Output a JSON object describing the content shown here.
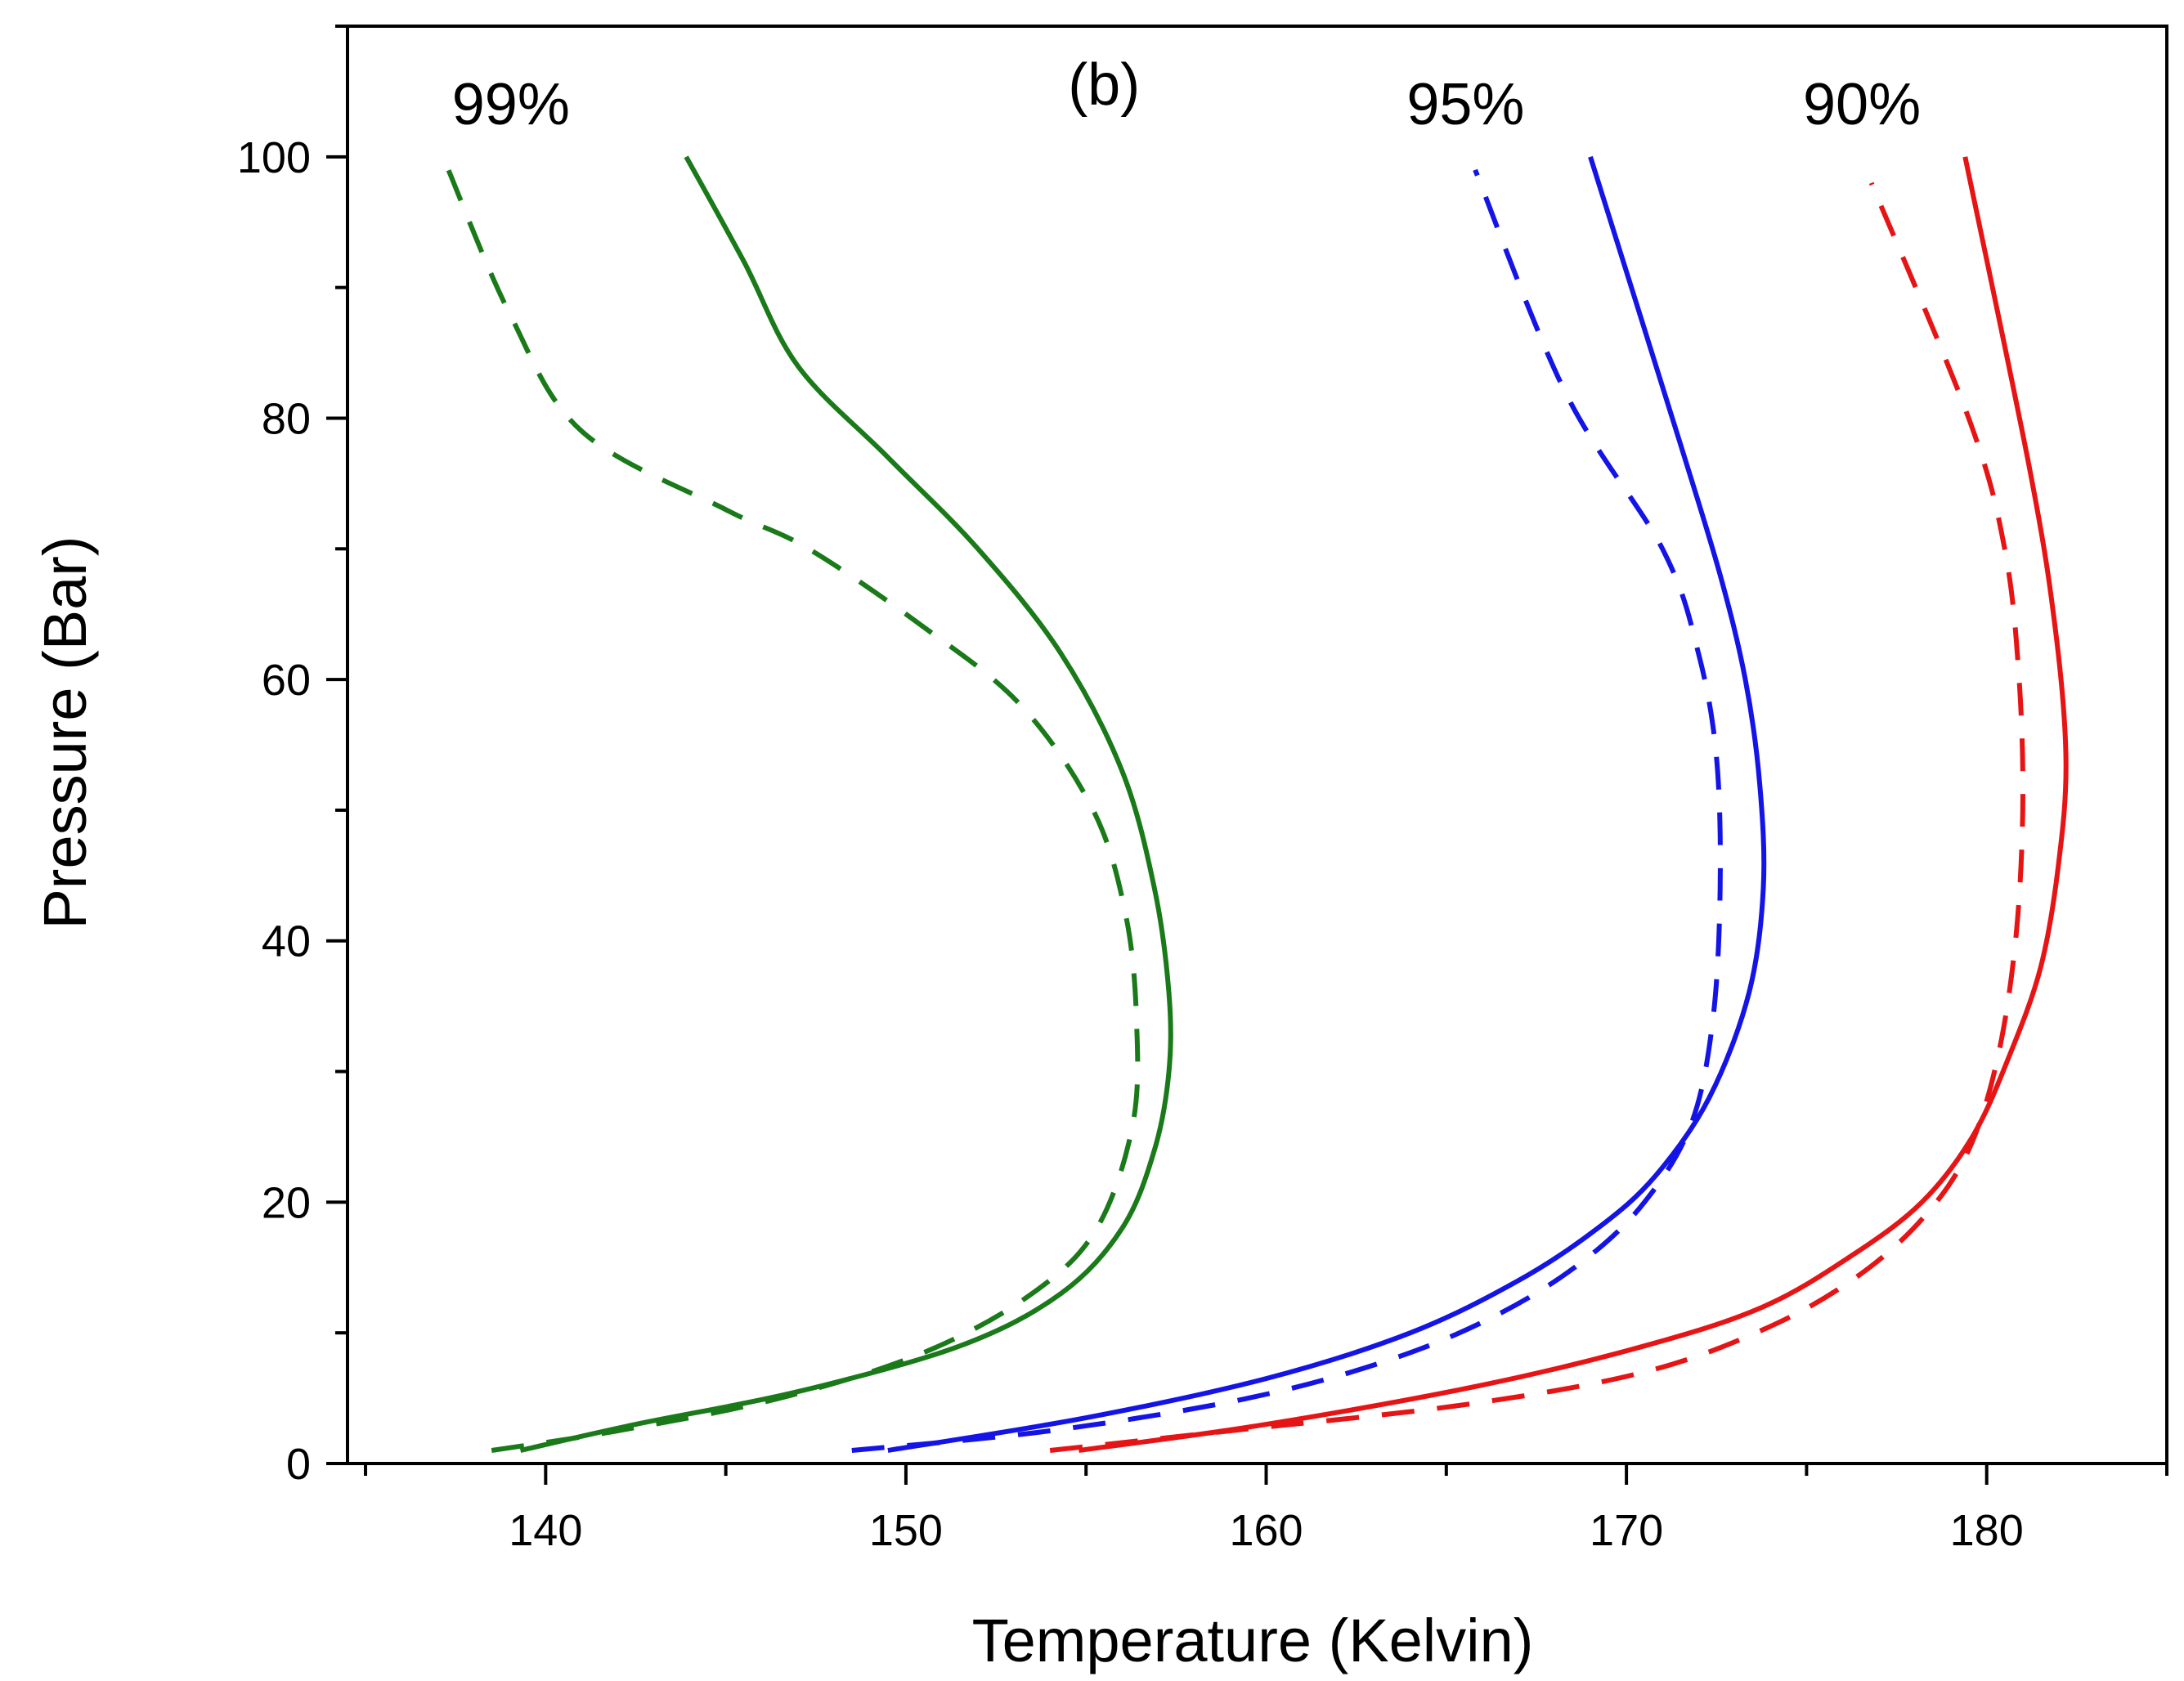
{
  "chart_data": {
    "type": "line",
    "title": "",
    "xlabel": "Temperature (Kelvin)",
    "ylabel": "Pressure (Bar)",
    "xlim": [
      134.5,
      185
    ],
    "ylim": [
      0,
      110
    ],
    "xticks": [
      140,
      150,
      160,
      170,
      180
    ],
    "yticks": [
      0,
      20,
      40,
      60,
      80,
      100
    ],
    "xtick_labels": [
      "140",
      "150",
      "160",
      "170",
      "180"
    ],
    "ytick_labels": [
      "0",
      "20",
      "40",
      "60",
      "80",
      "100"
    ],
    "grid": false,
    "annotations": [
      {
        "text": "(b)",
        "x": 154.5,
        "y": 104
      },
      {
        "text": "99%",
        "x": 137.4,
        "y": 102.5
      },
      {
        "text": "95%",
        "x": 163.9,
        "y": 102.5
      },
      {
        "text": "90%",
        "x": 174.9,
        "y": 102.5
      }
    ],
    "series": [
      {
        "name": "99% solid",
        "color": "#1a7a1a",
        "style": "solid",
        "x": [
          139.3,
          142.5,
          147.0,
          151.5,
          154.3,
          156.0,
          156.9,
          157.3,
          157.3,
          156.9,
          156.0,
          154.3,
          152.0,
          149.5,
          147.0,
          145.5,
          143.9
        ],
        "y": [
          1,
          3,
          5.5,
          9,
          13,
          18,
          24,
          30,
          36,
          44,
          53,
          62,
          70,
          77,
          84,
          92,
          100
        ]
      },
      {
        "name": "99% dashed",
        "color": "#1a7a1a",
        "style": "dashed",
        "x": [
          138.5,
          142.0,
          146.5,
          150.5,
          153.5,
          155.3,
          156.3,
          156.4,
          156.1,
          155.2,
          153.2,
          150.5,
          147.3,
          145.0,
          141.0,
          139.0,
          137.3
        ],
        "y": [
          1,
          2.5,
          5,
          8.5,
          13,
          18,
          26,
          34,
          42,
          50,
          58,
          64,
          70,
          73,
          79,
          88,
          99
        ]
      },
      {
        "name": "95% solid",
        "color": "#1414e6",
        "style": "solid",
        "x": [
          149.5,
          155.0,
          160.0,
          164.0,
          167.0,
          169.2,
          170.8,
          172.3,
          173.4,
          173.8,
          173.7,
          173.3,
          172.6,
          171.5,
          169.0
        ],
        "y": [
          1,
          3.5,
          6.5,
          10,
          14,
          18,
          22,
          28,
          36,
          44,
          52,
          60,
          68,
          78,
          100
        ]
      },
      {
        "name": "95% dashed",
        "color": "#1414e6",
        "style": "dashed",
        "x": [
          148.5,
          154.0,
          159.5,
          163.5,
          166.5,
          168.8,
          170.5,
          171.8,
          172.4,
          172.6,
          172.5,
          172.0,
          171.0,
          168.3,
          165.8
        ],
        "y": [
          1,
          2.5,
          5,
          8,
          11.5,
          15.5,
          20,
          26,
          34,
          44,
          54,
          62,
          70,
          82,
          99
        ]
      },
      {
        "name": "90% solid",
        "color": "#e61414",
        "style": "solid",
        "x": [
          154.8,
          160.0,
          166.0,
          170.5,
          173.8,
          176.3,
          178.2,
          179.6,
          180.6,
          181.5,
          182.0,
          182.2,
          181.9,
          181.2,
          179.4
        ],
        "y": [
          1,
          3,
          6,
          9,
          12,
          16,
          20,
          25,
          31,
          38,
          46,
          54,
          64,
          76,
          100
        ]
      },
      {
        "name": "90% dashed",
        "color": "#e61414",
        "style": "dashed",
        "x": [
          154.0,
          159.0,
          165.5,
          170.5,
          174.0,
          176.5,
          178.3,
          179.5,
          180.3,
          180.8,
          181.0,
          180.9,
          180.5,
          179.5,
          176.8
        ],
        "y": [
          1,
          2.5,
          4.5,
          7,
          10.5,
          14.5,
          19,
          24,
          31,
          40,
          50,
          60,
          70,
          80,
          98
        ]
      }
    ]
  }
}
